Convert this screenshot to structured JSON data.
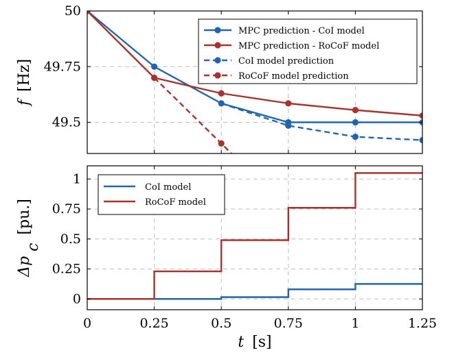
{
  "colors": {
    "blue": "#1f65b0",
    "red": "#a8322d"
  },
  "chart_data": [
    {
      "type": "line",
      "ylabel_var": "f",
      "ylabel_unit": "[Hz]",
      "xlim": [
        0,
        1.25
      ],
      "ylim": [
        49.36,
        50.0
      ],
      "grid": true,
      "legend_position": "top-right",
      "yticks": [
        49.5,
        49.75,
        50
      ],
      "ytick_labels": [
        "49.5",
        "49.75",
        "50"
      ],
      "series": [
        {
          "name": "MPC prediction - CoI model",
          "color": "blue",
          "dash": false,
          "x": [
            0,
            0.25,
            0.5,
            0.75,
            1.0,
            1.25
          ],
          "y": [
            50.0,
            49.75,
            49.585,
            49.5,
            49.5,
            49.5
          ]
        },
        {
          "name": "MPC prediction - RoCoF model",
          "color": "red",
          "dash": false,
          "x": [
            0,
            0.25,
            0.5,
            0.75,
            1.0,
            1.25
          ],
          "y": [
            50.0,
            49.7,
            49.63,
            49.585,
            49.555,
            49.53
          ]
        },
        {
          "name": "CoI model prediction",
          "color": "blue",
          "dash": true,
          "x": [
            0.5,
            0.75,
            1.0,
            1.25
          ],
          "y": [
            49.585,
            49.485,
            49.435,
            49.42
          ]
        },
        {
          "name": "RoCoF model prediction",
          "color": "red",
          "dash": true,
          "x": [
            0.25,
            0.5,
            0.55
          ],
          "y": [
            49.7,
            49.405,
            49.345
          ]
        }
      ]
    },
    {
      "type": "line",
      "ylabel_var": "Δp",
      "ylabel_sub": "c",
      "ylabel_unit": "[pu.]",
      "xlabel_var": "t",
      "xlabel_unit": "[s]",
      "xlim": [
        0,
        1.25
      ],
      "ylim": [
        -0.09,
        1.11
      ],
      "grid": true,
      "legend_position": "top-left",
      "step": true,
      "xticks": [
        0,
        0.25,
        0.5,
        0.75,
        1,
        1.25
      ],
      "xtick_labels": [
        "0",
        "0.25",
        "0.5",
        "0.75",
        "1",
        "1.25"
      ],
      "yticks": [
        0,
        0.25,
        0.5,
        0.75,
        1
      ],
      "ytick_labels": [
        "0",
        "0.25",
        "0.5",
        "0.75",
        "1"
      ],
      "series": [
        {
          "name": "CoI model",
          "color": "blue",
          "x": [
            0,
            0.25,
            0.5,
            0.75,
            1.0,
            1.25
          ],
          "y": [
            0,
            0.0,
            0.015,
            0.08,
            0.125,
            0.125
          ]
        },
        {
          "name": "RoCoF model",
          "color": "red",
          "x": [
            0,
            0.25,
            0.5,
            0.75,
            1.0,
            1.25
          ],
          "y": [
            0,
            0.23,
            0.49,
            0.76,
            1.05,
            1.05
          ]
        }
      ]
    }
  ]
}
